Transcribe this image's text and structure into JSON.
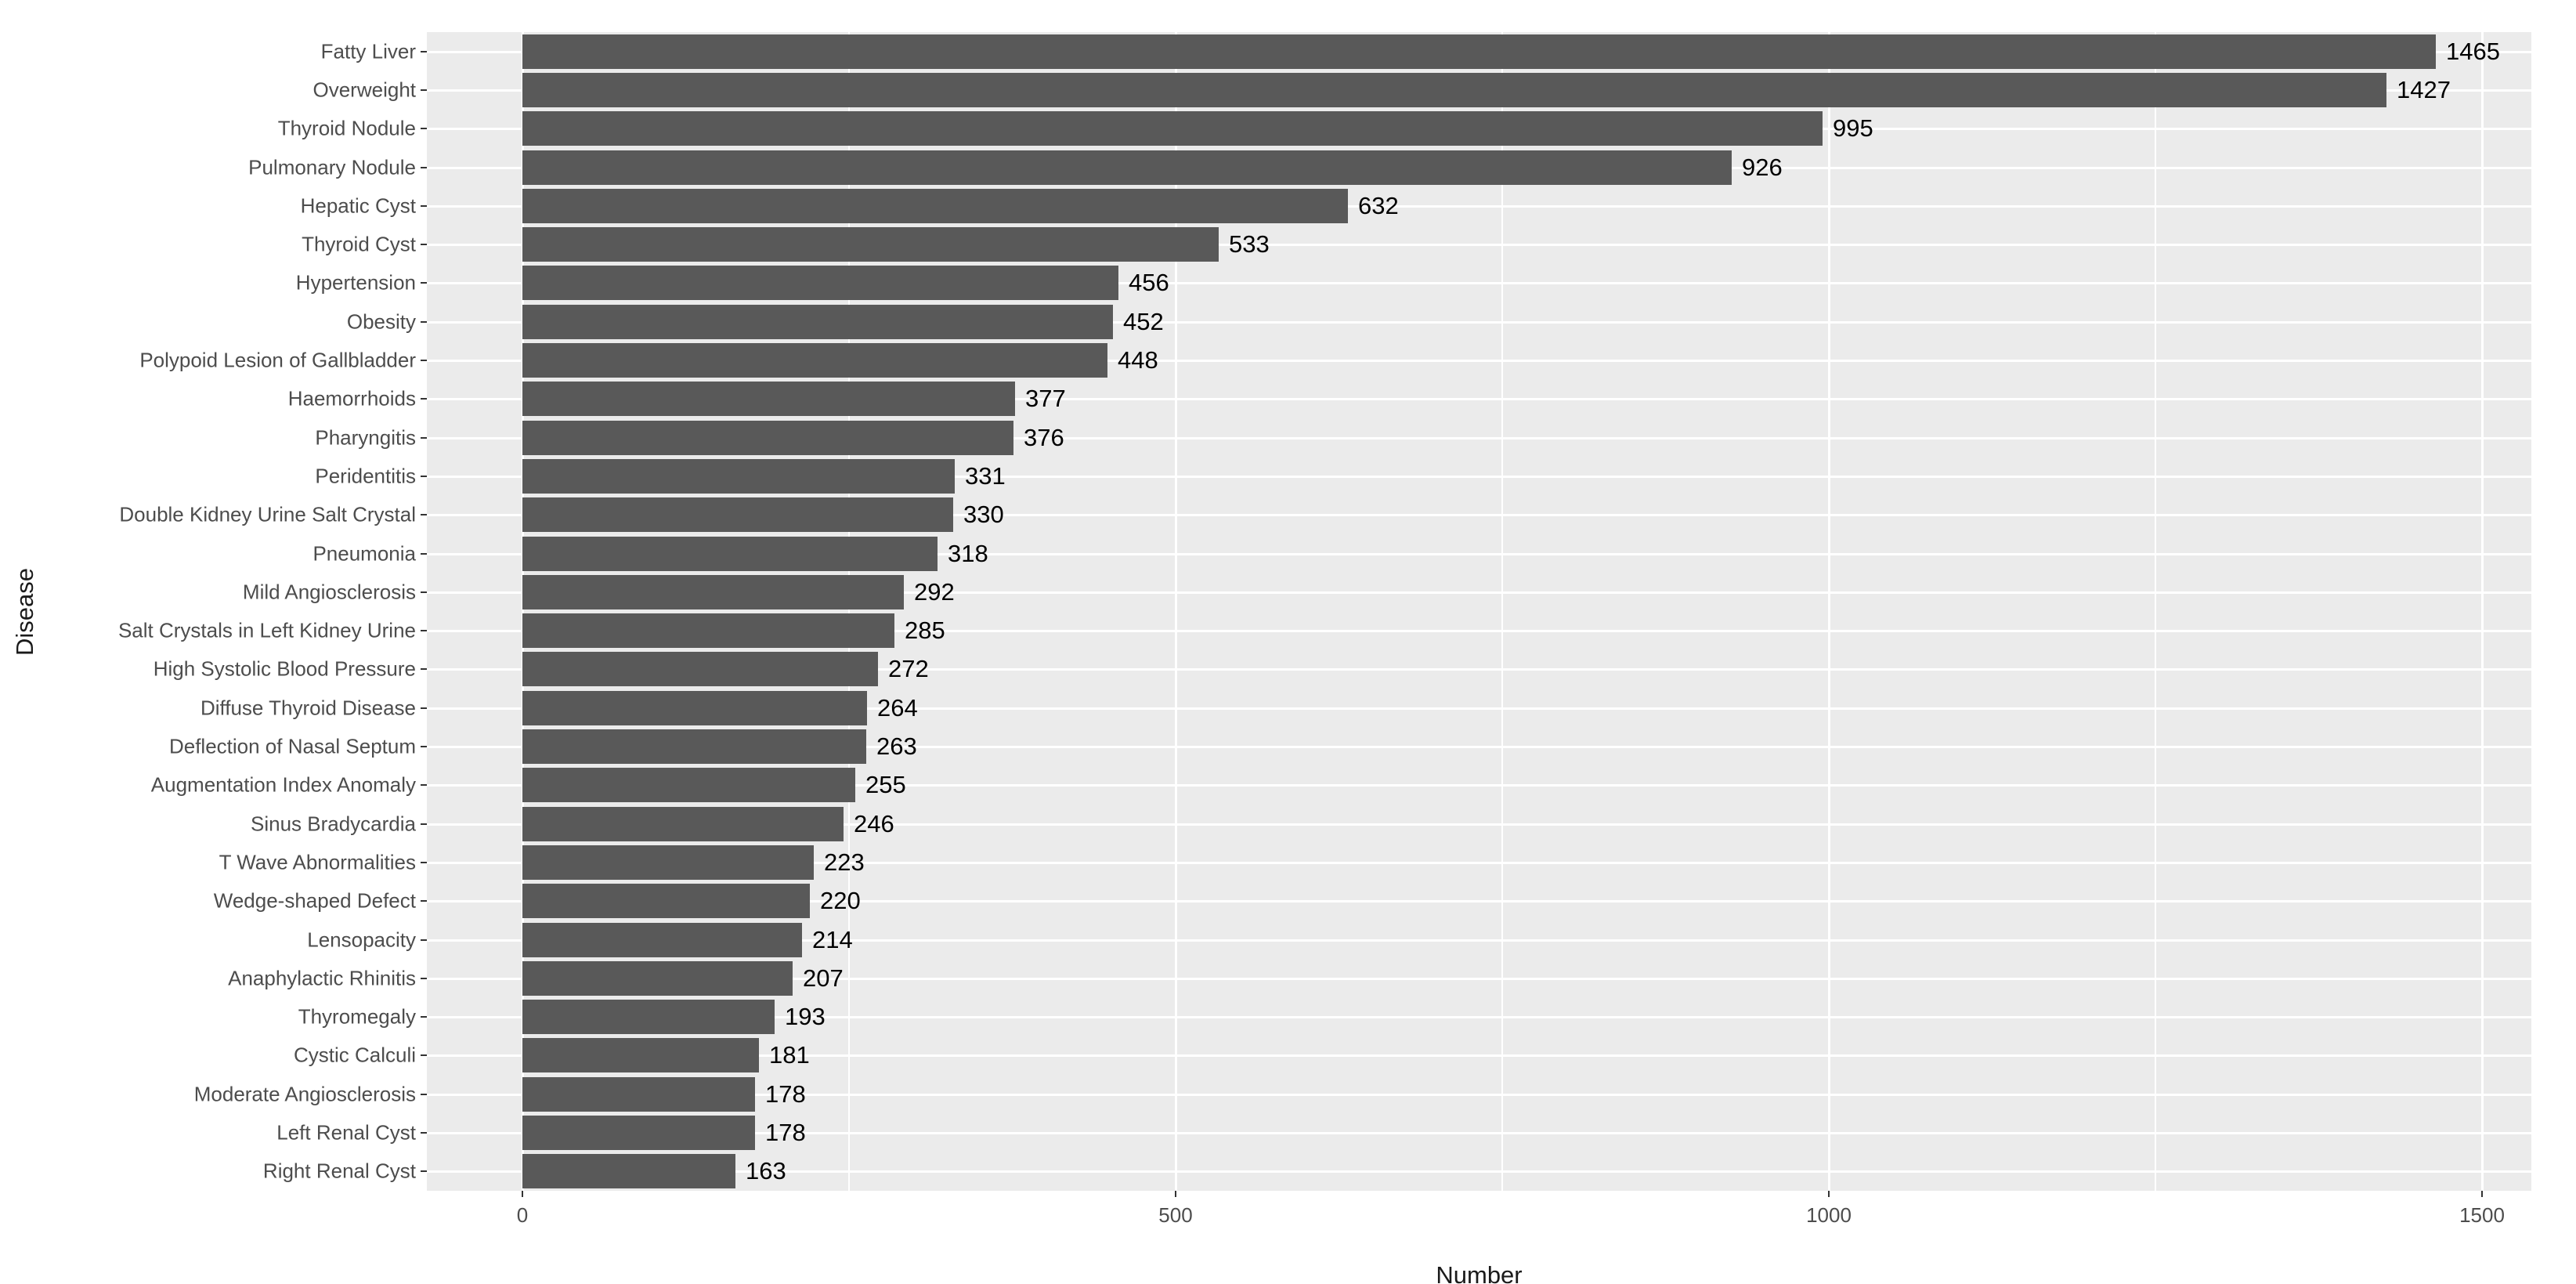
{
  "chart_data": {
    "type": "bar",
    "orientation": "horizontal",
    "title": "",
    "xlabel": "Number",
    "ylabel": "Disease",
    "categories": [
      "Fatty Liver",
      "Overweight",
      "Thyroid Nodule",
      "Pulmonary Nodule",
      "Hepatic Cyst",
      "Thyroid Cyst",
      "Hypertension",
      "Obesity",
      "Polypoid Lesion of Gallbladder",
      "Haemorrhoids",
      "Pharyngitis",
      "Peridentitis",
      "Double Kidney Urine Salt Crystal",
      "Pneumonia",
      "Mild Angiosclerosis",
      "Salt Crystals in Left Kidney Urine",
      "High Systolic Blood Pressure",
      "Diffuse Thyroid Disease",
      "Deflection of Nasal Septum",
      "Augmentation Index Anomaly",
      "Sinus Bradycardia",
      "T Wave Abnormalities",
      "Wedge-shaped Defect",
      "Lensopacity",
      "Anaphylactic Rhinitis",
      "Thyromegaly",
      "Cystic Calculi",
      "Moderate Angiosclerosis",
      "Left Renal Cyst",
      "Right Renal Cyst"
    ],
    "values": [
      1465,
      1427,
      995,
      926,
      632,
      533,
      456,
      452,
      448,
      377,
      376,
      331,
      330,
      318,
      292,
      285,
      272,
      264,
      263,
      255,
      246,
      223,
      220,
      214,
      207,
      193,
      181,
      178,
      178,
      163
    ],
    "value_labels_shown": true,
    "xlim": [
      -73,
      1538
    ],
    "x_major_ticks": [
      0,
      500,
      1000,
      1500
    ],
    "x_major_tick_labels": [
      "0",
      "500",
      "1000",
      "1500"
    ],
    "x_minor_ticks": [
      250,
      750,
      1250
    ],
    "grid": "on",
    "legend_position": "none",
    "colors": {
      "panel_bg": "#EBEBEB",
      "bar_fill": "#595959",
      "gridline": "#FFFFFF",
      "tick_mark": "#333333",
      "tick_label": "#4D4D4D",
      "value_label": "#000000",
      "axis_title": "#1A1A1A"
    }
  }
}
